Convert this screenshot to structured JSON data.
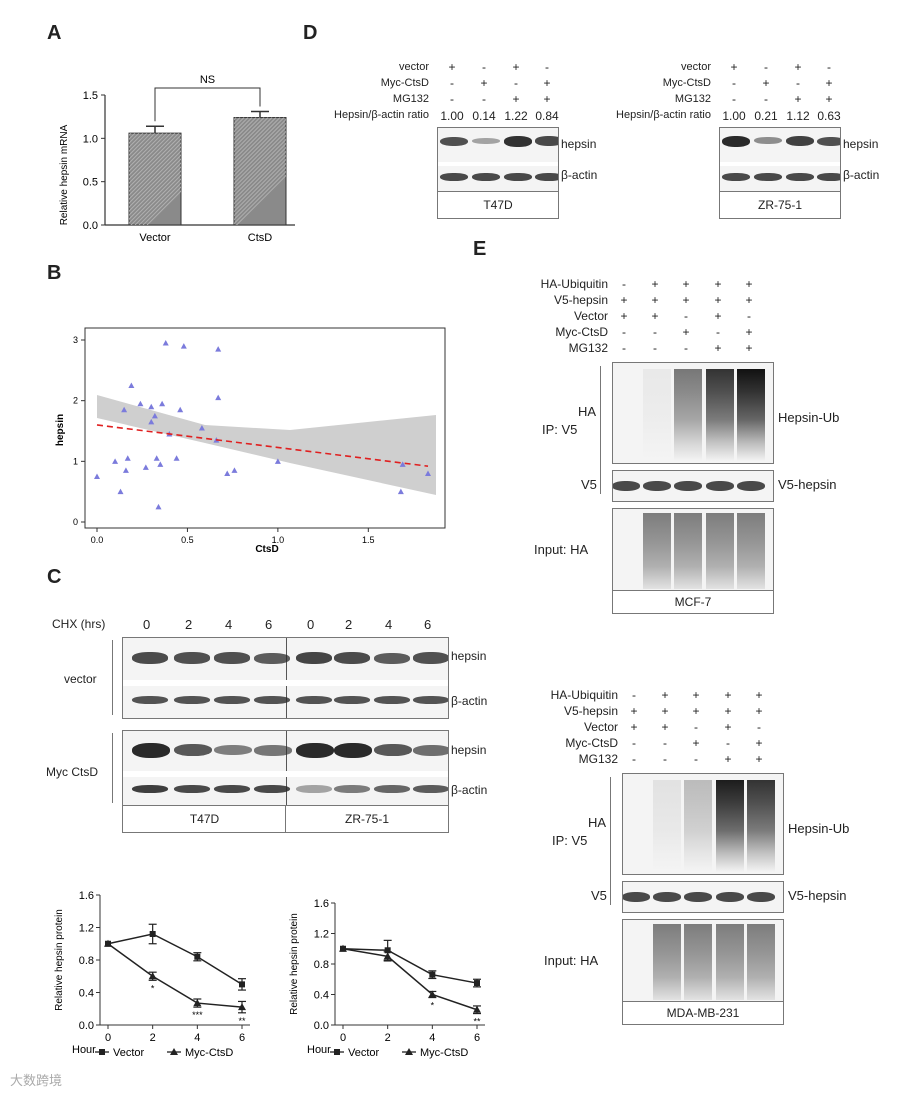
{
  "panels": {
    "A": "A",
    "B": "B",
    "C": "C",
    "D": "D",
    "E": "E"
  },
  "chart_data": [
    {
      "id": "A",
      "type": "bar",
      "categories": [
        "Vector",
        "CtsD"
      ],
      "values": [
        1.06,
        1.24
      ],
      "errors": [
        0.08,
        0.07
      ],
      "ylabel": "Relative hepsin mRNA",
      "yticks": [
        "0.0",
        "0.5",
        "1.0",
        "1.5"
      ],
      "ylim": [
        0,
        1.5
      ],
      "annotation": "NS"
    },
    {
      "id": "B",
      "type": "scatter",
      "xlabel": "CtsD",
      "ylabel": "hepsin",
      "xticks": [
        "0.0",
        "0.5",
        "1.0",
        "1.5"
      ],
      "yticks": [
        "0",
        "1",
        "2",
        "3"
      ],
      "xlim": [
        -0.05,
        1.9
      ],
      "ylim": [
        0,
        3.1
      ],
      "points": [
        [
          0.0,
          0.75
        ],
        [
          0.1,
          1.0
        ],
        [
          0.13,
          0.5
        ],
        [
          0.15,
          1.85
        ],
        [
          0.16,
          0.85
        ],
        [
          0.17,
          1.05
        ],
        [
          0.19,
          2.25
        ],
        [
          0.24,
          1.95
        ],
        [
          0.27,
          0.9
        ],
        [
          0.3,
          1.65
        ],
        [
          0.3,
          1.9
        ],
        [
          0.32,
          1.75
        ],
        [
          0.33,
          1.05
        ],
        [
          0.34,
          0.25
        ],
        [
          0.35,
          0.95
        ],
        [
          0.36,
          1.95
        ],
        [
          0.38,
          2.95
        ],
        [
          0.4,
          1.45
        ],
        [
          0.44,
          1.05
        ],
        [
          0.46,
          1.85
        ],
        [
          0.48,
          2.9
        ],
        [
          0.58,
          1.55
        ],
        [
          0.66,
          1.35
        ],
        [
          0.67,
          2.05
        ],
        [
          0.67,
          2.85
        ],
        [
          0.72,
          0.8
        ],
        [
          0.76,
          0.85
        ],
        [
          1.0,
          1.0
        ],
        [
          1.68,
          0.5
        ],
        [
          1.69,
          0.95
        ],
        [
          1.83,
          0.8
        ]
      ],
      "fit": {
        "x": [
          0.0,
          1.83
        ],
        "y": [
          1.6,
          0.92
        ]
      }
    },
    {
      "id": "C-left",
      "type": "line",
      "x": [
        0,
        2,
        4,
        6
      ],
      "xlabel": "Hour",
      "ylabel": "Relative hepsin protein",
      "yticks": [
        "0.0",
        "0.4",
        "0.8",
        "1.2",
        "1.6"
      ],
      "ylim": [
        0,
        1.6
      ],
      "series": [
        {
          "name": "Vector",
          "values": [
            1.0,
            1.12,
            0.84,
            0.5
          ],
          "errors": [
            0,
            0.12,
            0.05,
            0.07
          ],
          "marker": "square"
        },
        {
          "name": "Myc-CtsD",
          "values": [
            1.0,
            0.6,
            0.27,
            0.22
          ],
          "errors": [
            0,
            0.05,
            0.05,
            0.07
          ],
          "marker": "triangle"
        }
      ],
      "stars": [
        "",
        "*",
        "***",
        "**"
      ]
    },
    {
      "id": "C-right",
      "type": "line",
      "x": [
        0,
        2,
        4,
        6
      ],
      "xlabel": "Hour",
      "ylabel": "Relative hepsin protein",
      "yticks": [
        "0.0",
        "0.4",
        "0.8",
        "1.2",
        "1.6"
      ],
      "ylim": [
        0,
        1.6
      ],
      "series": [
        {
          "name": "Vector",
          "values": [
            1.0,
            0.98,
            0.66,
            0.55
          ],
          "errors": [
            0,
            0.13,
            0.05,
            0.05
          ],
          "marker": "square"
        },
        {
          "name": "Myc-CtsD",
          "values": [
            1.0,
            0.9,
            0.4,
            0.2
          ],
          "errors": [
            0,
            0.06,
            0.04,
            0.05
          ],
          "marker": "triangle"
        }
      ],
      "stars": [
        "",
        "",
        "*",
        "**"
      ]
    }
  ],
  "panelD": {
    "rows": [
      "vector",
      "Myc-CtsD",
      "MG132",
      "Hepsin/β-actin ratio"
    ],
    "signs": [
      [
        "+",
        "-",
        "+",
        "-"
      ],
      [
        "-",
        "+",
        "-",
        "+"
      ],
      [
        "-",
        "-",
        "+",
        "+"
      ]
    ],
    "ratios_t47d": [
      "1.00",
      "0.14",
      "1.22",
      "0.84"
    ],
    "ratios_zr": [
      "1.00",
      "0.21",
      "1.12",
      "0.63"
    ],
    "band_hepsin": "hepsin",
    "band_actin": "β-actin",
    "cell_t47d": "T47D",
    "cell_zr": "ZR-75-1"
  },
  "panelC": {
    "chx": "CHX (hrs)",
    "times": [
      "0",
      "2",
      "4",
      "6",
      "0",
      "2",
      "4",
      "6"
    ],
    "group_vector": "vector",
    "group_myc": "Myc CtsD",
    "band_hepsin": "hepsin",
    "band_actin": "β-actin",
    "cell_t47d": "T47D",
    "cell_zr": "ZR-75-1"
  },
  "panelE": {
    "rows": [
      "HA-Ubiquitin",
      "V5-hepsin",
      "Vector",
      "Myc-CtsD",
      "MG132"
    ],
    "signs_top": [
      [
        "-",
        "+",
        "+",
        "+",
        "+"
      ],
      [
        "+",
        "+",
        "+",
        "+",
        "+"
      ],
      [
        "+",
        "+",
        "-",
        "+",
        "-"
      ],
      [
        "-",
        "-",
        "+",
        "-",
        "+"
      ],
      [
        "-",
        "-",
        "-",
        "+",
        "+"
      ]
    ],
    "signs_bottom": [
      [
        "-",
        "+",
        "+",
        "+",
        "+"
      ],
      [
        "+",
        "+",
        "+",
        "+",
        "+"
      ],
      [
        "+",
        "+",
        "-",
        "+",
        "-"
      ],
      [
        "-",
        "-",
        "+",
        "-",
        "+"
      ],
      [
        "-",
        "-",
        "-",
        "+",
        "+"
      ]
    ],
    "ip": "IP: V5",
    "ha": "HA",
    "v5": "V5",
    "input_ha": "Input: HA",
    "hepsin_ub": "Hepsin-Ub",
    "v5_hepsin": "V5-hepsin",
    "cell_top": "MCF-7",
    "cell_bottom": "MDA-MB-231"
  },
  "watermark": "大数跨境"
}
